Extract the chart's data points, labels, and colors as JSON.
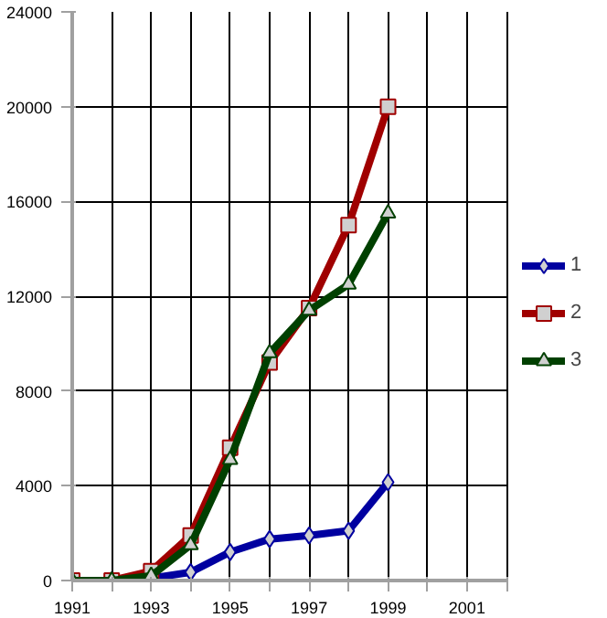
{
  "chart_data": {
    "type": "line",
    "x": [
      1991,
      1992,
      1993,
      1994,
      1995,
      1996,
      1997,
      1998,
      1999
    ],
    "xlim": [
      1991,
      2002
    ],
    "xticks": [
      1991,
      {
        "value": 1992,
        "label": null
      },
      1993,
      {
        "value": 1994,
        "label": null
      },
      1995,
      {
        "value": 1996,
        "label": null
      },
      1997,
      {
        "value": 1998,
        "label": null
      },
      1999,
      {
        "value": 2000,
        "label": null
      },
      2001,
      {
        "value": 2002,
        "label": null
      }
    ],
    "ylim": [
      0,
      24000
    ],
    "yticks": [
      0,
      4000,
      8000,
      12000,
      16000,
      20000,
      24000
    ],
    "grid": true,
    "legend": "right",
    "line_style": "solid",
    "series": [
      {
        "name": "1",
        "color": "#0000a0",
        "marker": "diamond",
        "values": [
          0,
          0,
          100,
          350,
          1200,
          1750,
          1900,
          2100,
          4150
        ]
      },
      {
        "name": "2",
        "color": "#a00000",
        "marker": "square",
        "values": [
          0,
          0,
          400,
          1900,
          5600,
          9200,
          11500,
          15000,
          20000
        ]
      },
      {
        "name": "3",
        "color": "#004000",
        "marker": "triangle",
        "values": [
          0,
          0,
          200,
          1500,
          5100,
          9600,
          11400,
          12500,
          15500
        ]
      }
    ]
  }
}
